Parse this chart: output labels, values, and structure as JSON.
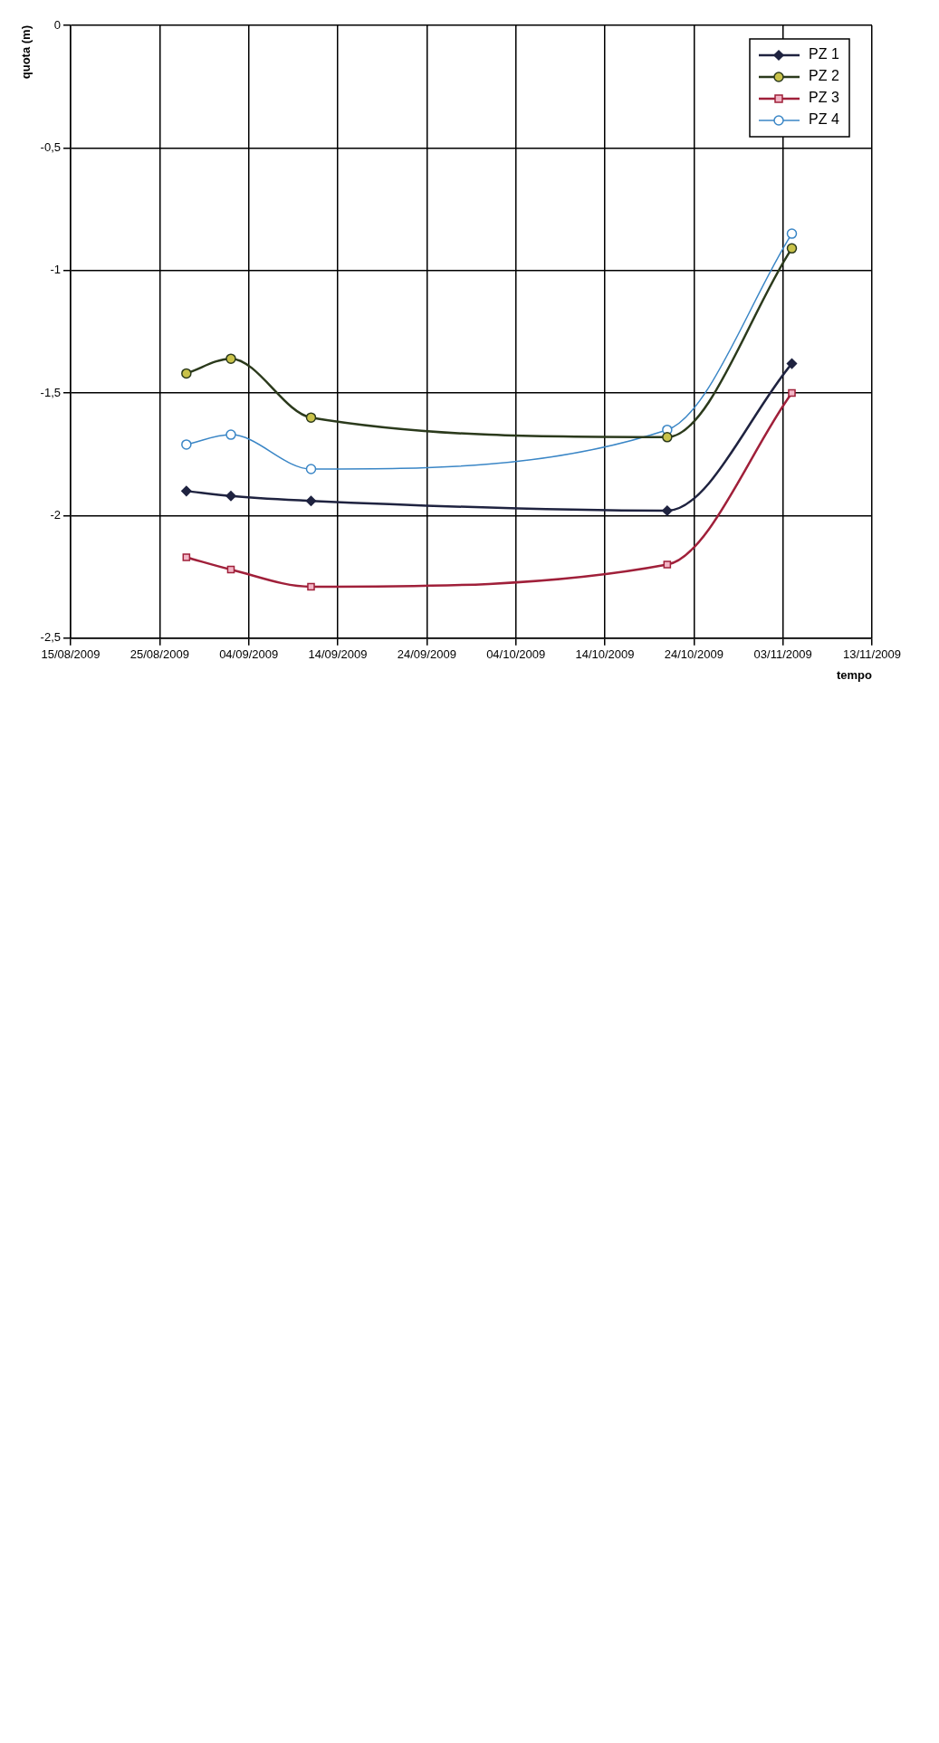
{
  "chart_data": {
    "type": "line",
    "xlabel": "tempo",
    "ylabel": "quota (m)",
    "x": [
      "2009-08-28",
      "2009-09-02",
      "2009-09-11",
      "2009-10-21",
      "2009-11-04"
    ],
    "series": [
      {
        "name": "PZ 1",
        "color": "#1f2340",
        "marker": "diamond",
        "values": [
          -1.9,
          -1.92,
          -1.94,
          -1.98,
          -1.38
        ]
      },
      {
        "name": "PZ 2",
        "color": "#2b3a1c",
        "marker": "circle",
        "values": [
          -1.42,
          -1.36,
          -1.6,
          -1.68,
          -0.91
        ]
      },
      {
        "name": "PZ 3",
        "color": "#a0203a",
        "marker": "square",
        "values": [
          -2.17,
          -2.22,
          -2.29,
          -2.2,
          -1.5
        ]
      },
      {
        "name": "PZ 4",
        "color": "#3a86c6",
        "marker": "circle",
        "values": [
          -1.71,
          -1.67,
          -1.81,
          -1.65,
          -0.85
        ]
      }
    ],
    "xlim": [
      "2009-08-15",
      "2009-11-13"
    ],
    "xticks": [
      {
        "value": "2009-08-15",
        "label": "15/08/2009"
      },
      {
        "value": "2009-08-25",
        "label": "25/08/2009"
      },
      {
        "value": "2009-09-04",
        "label": "04/09/2009"
      },
      {
        "value": "2009-09-14",
        "label": "14/09/2009"
      },
      {
        "value": "2009-09-24",
        "label": "24/09/2009"
      },
      {
        "value": "2009-10-04",
        "label": "04/10/2009"
      },
      {
        "value": "2009-10-14",
        "label": "14/10/2009"
      },
      {
        "value": "2009-10-24",
        "label": "24/10/2009"
      },
      {
        "value": "2009-11-03",
        "label": "03/11/2009"
      },
      {
        "value": "2009-11-13",
        "label": "13/11/2009"
      }
    ],
    "ylim": [
      -2.5,
      0
    ],
    "yticks": [
      0,
      {
        "value": -0.5,
        "label": "-0,5"
      },
      -1,
      {
        "value": -1.5,
        "label": "-1,5"
      },
      -2,
      {
        "value": -2.5,
        "label": "-2,5"
      }
    ],
    "grid": true,
    "legend": "top right",
    "line_style": "solid"
  }
}
